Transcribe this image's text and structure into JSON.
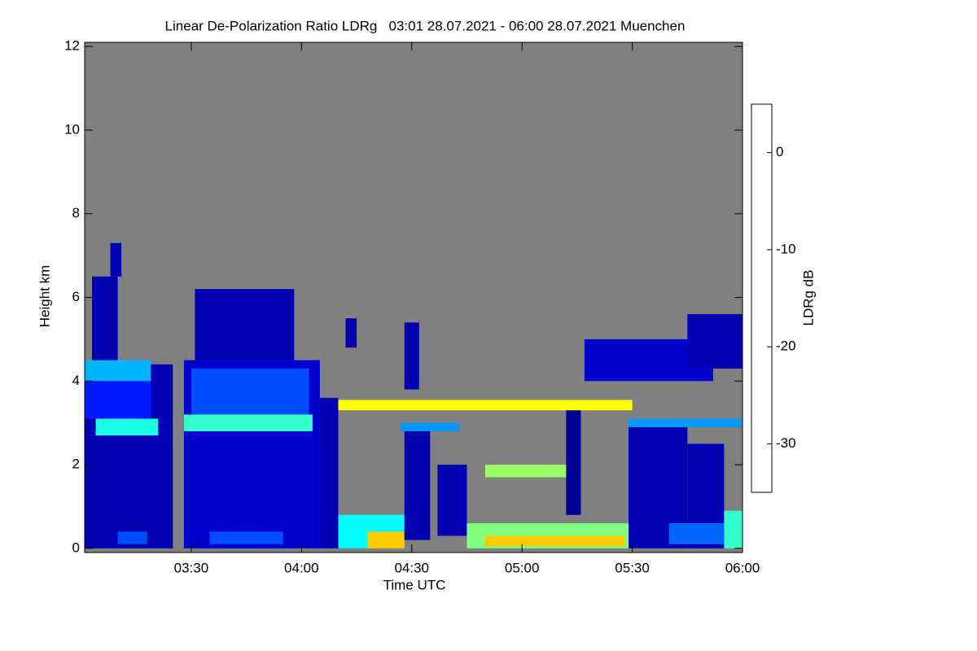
{
  "chart_data": {
    "type": "heatmap",
    "title": "Linear De-Polarization Ratio LDRg   03:01 28.07.2021 - 06:00 28.07.2021 Muenchen",
    "x_label": "Time UTC",
    "y_label": "Height km",
    "colorbar_label": "LDRg dB",
    "xlim": [
      "03:01",
      "06:00"
    ],
    "xticks": [
      "03:30",
      "04:00",
      "04:30",
      "05:00",
      "05:30",
      "06:00"
    ],
    "ylim": [
      -0.1,
      12.1
    ],
    "yticks": [
      0,
      2,
      4,
      6,
      8,
      10,
      12
    ],
    "clim": [
      -35,
      5
    ],
    "cticks": [
      0,
      -10,
      -20,
      -30
    ],
    "colormap": "jet",
    "background": "#808080",
    "regions": [
      {
        "start": "03:01",
        "end": "03:25",
        "bottom": 0,
        "top": 4.4,
        "value": -33
      },
      {
        "start": "03:03",
        "end": "03:10",
        "bottom": 4.4,
        "top": 6.5,
        "value": -33
      },
      {
        "start": "03:08",
        "end": "03:11",
        "bottom": 6.5,
        "top": 7.3,
        "value": -33
      },
      {
        "start": "03:01",
        "end": "03:19",
        "bottom": 3.1,
        "top": 4.0,
        "value": -29
      },
      {
        "start": "03:01",
        "end": "03:19",
        "bottom": 4.0,
        "top": 4.5,
        "value": -23
      },
      {
        "start": "03:04",
        "end": "03:21",
        "bottom": 2.7,
        "top": 3.1,
        "value": -19
      },
      {
        "start": "03:10",
        "end": "03:18",
        "bottom": 0.1,
        "top": 0.4,
        "value": -27
      },
      {
        "start": "03:28",
        "end": "04:05",
        "bottom": 0,
        "top": 4.5,
        "value": -32
      },
      {
        "start": "03:31",
        "end": "03:58",
        "bottom": 4.5,
        "top": 6.2,
        "value": -33
      },
      {
        "start": "03:30",
        "end": "04:02",
        "bottom": 3.2,
        "top": 4.3,
        "value": -27
      },
      {
        "start": "03:28",
        "end": "04:03",
        "bottom": 2.8,
        "top": 3.2,
        "value": -18
      },
      {
        "start": "03:35",
        "end": "03:55",
        "bottom": 0.1,
        "top": 0.4,
        "value": -27
      },
      {
        "start": "04:05",
        "end": "04:10",
        "bottom": 0,
        "top": 3.6,
        "value": -33
      },
      {
        "start": "04:12",
        "end": "04:15",
        "bottom": 4.8,
        "top": 5.5,
        "value": -33
      },
      {
        "start": "04:10",
        "end": "05:30",
        "bottom": 3.3,
        "top": 3.55,
        "value": -10
      },
      {
        "start": "04:10",
        "end": "04:28",
        "bottom": 0,
        "top": 0.8,
        "value": -20
      },
      {
        "start": "04:18",
        "end": "04:28",
        "bottom": 0,
        "top": 0.4,
        "value": -8
      },
      {
        "start": "04:28",
        "end": "04:35",
        "bottom": 0.2,
        "top": 2.8,
        "value": -33
      },
      {
        "start": "04:37",
        "end": "04:45",
        "bottom": 0.3,
        "top": 2.0,
        "value": -33
      },
      {
        "start": "04:27",
        "end": "04:43",
        "bottom": 2.8,
        "top": 3.0,
        "value": -24
      },
      {
        "start": "04:28",
        "end": "04:32",
        "bottom": 3.8,
        "top": 5.4,
        "value": -33
      },
      {
        "start": "04:45",
        "end": "05:30",
        "bottom": 0,
        "top": 0.6,
        "value": -15
      },
      {
        "start": "04:50",
        "end": "05:28",
        "bottom": 0.05,
        "top": 0.3,
        "value": -8
      },
      {
        "start": "04:50",
        "end": "05:15",
        "bottom": 1.7,
        "top": 2.0,
        "value": -14
      },
      {
        "start": "05:12",
        "end": "05:16",
        "bottom": 0.8,
        "top": 3.3,
        "value": -34
      },
      {
        "start": "05:17",
        "end": "05:52",
        "bottom": 4.0,
        "top": 5.0,
        "value": -32
      },
      {
        "start": "05:45",
        "end": "06:00",
        "bottom": 4.3,
        "top": 5.6,
        "value": -33
      },
      {
        "start": "05:29",
        "end": "05:45",
        "bottom": 0,
        "top": 2.9,
        "value": -33
      },
      {
        "start": "05:29",
        "end": "06:00",
        "bottom": 2.9,
        "top": 3.1,
        "value": -24
      },
      {
        "start": "05:45",
        "end": "05:55",
        "bottom": 0,
        "top": 2.5,
        "value": -33
      },
      {
        "start": "05:40",
        "end": "05:55",
        "bottom": 0.1,
        "top": 0.6,
        "value": -26
      },
      {
        "start": "05:55",
        "end": "06:00",
        "bottom": 0,
        "top": 0.9,
        "value": -18
      }
    ]
  }
}
